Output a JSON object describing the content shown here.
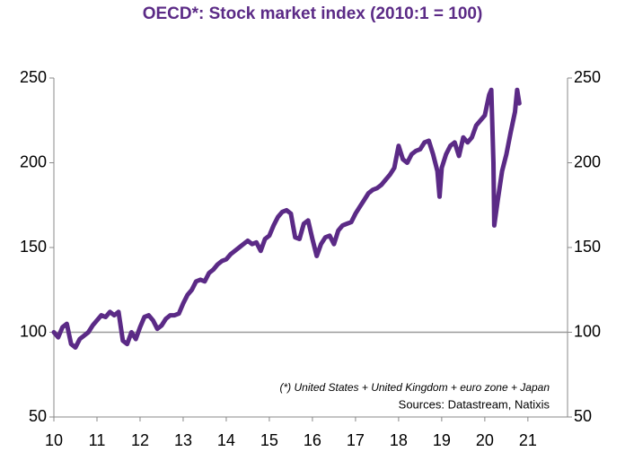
{
  "chart_data": {
    "type": "line",
    "title": "OECD*:  Stock market index (2010:1 = 100)",
    "annotations": [
      "(*) United States + United Kingdom + euro zone + Japan",
      "Sources:  Datastream,  Natixis"
    ],
    "x": [
      10.0,
      10.1,
      10.2,
      10.3,
      10.4,
      10.5,
      10.6,
      10.7,
      10.8,
      10.9,
      11.0,
      11.1,
      11.2,
      11.3,
      11.4,
      11.5,
      11.6,
      11.7,
      11.8,
      11.9,
      12.0,
      12.1,
      12.2,
      12.3,
      12.4,
      12.5,
      12.6,
      12.7,
      12.8,
      12.9,
      13.0,
      13.1,
      13.2,
      13.3,
      13.4,
      13.5,
      13.6,
      13.7,
      13.8,
      13.9,
      14.0,
      14.1,
      14.2,
      14.3,
      14.4,
      14.5,
      14.6,
      14.7,
      14.8,
      14.9,
      15.0,
      15.1,
      15.2,
      15.3,
      15.4,
      15.5,
      15.6,
      15.7,
      15.8,
      15.9,
      16.0,
      16.1,
      16.2,
      16.3,
      16.4,
      16.5,
      16.6,
      16.7,
      16.8,
      16.9,
      17.0,
      17.1,
      17.2,
      17.3,
      17.4,
      17.5,
      17.6,
      17.7,
      17.8,
      17.9,
      18.0,
      18.1,
      18.2,
      18.3,
      18.4,
      18.5,
      18.6,
      18.7,
      18.8,
      18.9,
      18.95,
      19.0,
      19.1,
      19.2,
      19.3,
      19.4,
      19.5,
      19.6,
      19.7,
      19.8,
      19.9,
      20.0,
      20.1,
      20.15,
      20.2,
      20.22,
      20.3,
      20.4,
      20.5,
      20.6,
      20.7,
      20.75,
      20.8
    ],
    "series": [
      {
        "name": "OECD stock market index",
        "color": "#5b2a86",
        "values": [
          100,
          97,
          103,
          105,
          93,
          91,
          96,
          98,
          100,
          104,
          107,
          110,
          109,
          112,
          110,
          112,
          95,
          93,
          100,
          96,
          103,
          109,
          110,
          107,
          102,
          104,
          108,
          110,
          110,
          111,
          117,
          122,
          125,
          130,
          131,
          130,
          135,
          137,
          140,
          142,
          143,
          146,
          148,
          150,
          152,
          154,
          152,
          153,
          148,
          155,
          157,
          163,
          168,
          171,
          172,
          170,
          156,
          155,
          164,
          166,
          155,
          145,
          152,
          156,
          157,
          152,
          160,
          163,
          164,
          165,
          170,
          174,
          178,
          182,
          184,
          185,
          187,
          190,
          193,
          197,
          210,
          202,
          200,
          205,
          207,
          208,
          212,
          213,
          205,
          195,
          180,
          197,
          205,
          210,
          212,
          204,
          215,
          212,
          215,
          222,
          225,
          228,
          240,
          243,
          200,
          163,
          178,
          195,
          205,
          218,
          230,
          243,
          235
        ]
      }
    ],
    "xlim": [
      10,
      21.92
    ],
    "xticks": [
      10,
      11,
      12,
      13,
      14,
      15,
      16,
      17,
      18,
      19,
      20,
      21
    ],
    "ylim": [
      50,
      250
    ],
    "yticks": [
      50,
      100,
      150,
      200,
      250
    ],
    "y2lim": [
      50,
      250
    ],
    "y2ticks": [
      50,
      100,
      150,
      200,
      250
    ],
    "reference_line": 100
  }
}
